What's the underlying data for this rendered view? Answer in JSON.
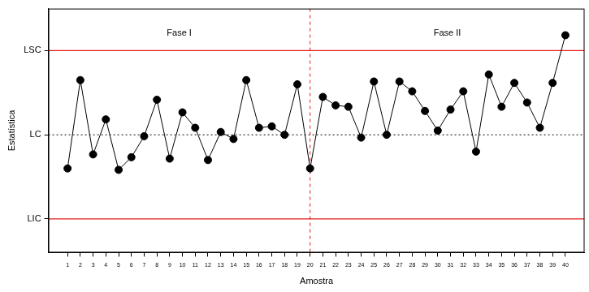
{
  "chart_data": {
    "type": "line",
    "x_label": "Amostra",
    "y_label": "Estatística",
    "x": [
      1,
      2,
      3,
      4,
      5,
      6,
      7,
      8,
      9,
      10,
      11,
      12,
      13,
      14,
      15,
      16,
      17,
      18,
      19,
      20,
      21,
      22,
      23,
      24,
      25,
      26,
      27,
      28,
      29,
      30,
      31,
      32,
      33,
      34,
      35,
      36,
      37,
      38,
      39,
      40
    ],
    "values": [
      -1.2,
      1.95,
      -0.7,
      0.55,
      -1.25,
      -0.8,
      -0.05,
      1.25,
      -0.85,
      0.8,
      0.25,
      -0.9,
      0.1,
      -0.15,
      1.95,
      0.25,
      0.3,
      0.0,
      1.8,
      -1.2,
      1.35,
      1.05,
      1.0,
      -0.1,
      1.9,
      0.0,
      1.9,
      1.55,
      0.85,
      0.15,
      0.9,
      1.55,
      -0.6,
      2.15,
      1.0,
      1.85,
      1.15,
      0.25,
      1.85,
      3.55
    ],
    "color": "#000000",
    "marker": "circle",
    "line_style": "solid",
    "xlim": [
      -0.5,
      41.5
    ],
    "xticks": [
      1,
      2,
      3,
      4,
      5,
      6,
      7,
      8,
      9,
      10,
      11,
      12,
      13,
      14,
      15,
      16,
      17,
      18,
      19,
      20,
      21,
      22,
      23,
      24,
      25,
      26,
      27,
      28,
      29,
      30,
      31,
      32,
      33,
      34,
      35,
      36,
      37,
      38,
      39,
      40
    ],
    "ylim": [
      -4.2,
      4.5
    ],
    "yticks": [
      {
        "value": -3,
        "label": "LIC"
      },
      {
        "value": 0,
        "label": "LC"
      },
      {
        "value": 3,
        "label": "LSC"
      }
    ],
    "grid": false,
    "reference_lines": [
      {
        "value": 3,
        "color": "#e31a1c",
        "line_style": "solid"
      },
      {
        "value": 0,
        "color": "#000000",
        "line_style": "dotted"
      },
      {
        "value": -3,
        "color": "#e31a1c",
        "line_style": "solid"
      }
    ],
    "phase_change": {
      "x": 20,
      "color": "#e31a1c",
      "line_style": "dashed"
    },
    "phases": [
      "Fase I",
      "Fase II"
    ]
  }
}
